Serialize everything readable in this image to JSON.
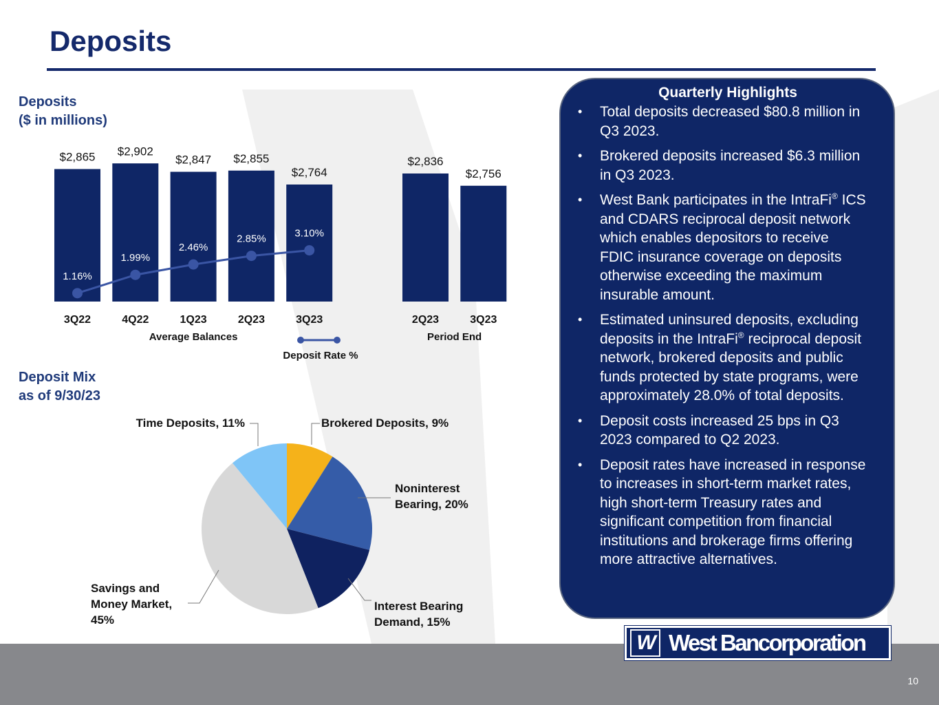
{
  "header": {
    "title": "Deposits"
  },
  "colors": {
    "navy": "#14296b",
    "bar": "#0f2666",
    "rate_line": "#3a55a4",
    "footer": "#87888c"
  },
  "deposits_chart": {
    "title": "Deposits\n($ in millions)"
  },
  "mix_chart": {
    "title": "Deposit Mix\nas of 9/30/23"
  },
  "chart_data": [
    {
      "type": "bar",
      "title": "Deposits ($ in millions)",
      "groups": [
        {
          "name": "Average Balances",
          "categories": [
            "3Q22",
            "4Q22",
            "1Q23",
            "2Q23",
            "3Q23"
          ],
          "values": [
            2865,
            2902,
            2847,
            2855,
            2764
          ],
          "labels": [
            "$2,865",
            "$2,902",
            "$2,847",
            "$2,855",
            "$2,764"
          ]
        },
        {
          "name": "Period End",
          "categories": [
            "2Q23",
            "3Q23"
          ],
          "values": [
            2836,
            2756
          ],
          "labels": [
            "$2,836",
            "$2,756"
          ]
        }
      ],
      "line_series": {
        "name": "Deposit Rate  %",
        "categories": [
          "3Q22",
          "4Q22",
          "1Q23",
          "2Q23",
          "3Q23"
        ],
        "values": [
          1.16,
          1.99,
          2.46,
          2.85,
          3.1
        ],
        "labels": [
          "1.16%",
          "1.99%",
          "2.46%",
          "2.85%",
          "3.10%"
        ]
      }
    },
    {
      "type": "pie",
      "title": "Deposit Mix as of 9/30/23",
      "slices": [
        {
          "name": "Brokered Deposits",
          "value": 9,
          "label": "Brokered Deposits, 9%",
          "color": "#f5b21a"
        },
        {
          "name": "Noninterest Bearing",
          "value": 20,
          "label": "Noninterest\nBearing, 20%",
          "color": "#355ca8"
        },
        {
          "name": "Interest Bearing Demand",
          "value": 15,
          "label": "Interest Bearing\nDemand, 15%",
          "color": "#0f2260"
        },
        {
          "name": "Savings and Money Market",
          "value": 45,
          "label": "Savings and\nMoney Market,\n45%",
          "color": "#d8d8d8"
        },
        {
          "name": "Time Deposits",
          "value": 11,
          "label": "Time Deposits, 11%",
          "color": "#7fc5f7"
        }
      ]
    }
  ],
  "highlights": {
    "title": "Quarterly Highlights",
    "items": [
      "Total deposits decreased $80.8 million in Q3 2023.",
      "Brokered deposits increased $6.3 million in Q3 2023.",
      "West Bank participates in the IntraFi® ICS and CDARS reciprocal deposit network which enables depositors to receive FDIC insurance coverage on deposits otherwise exceeding the maximum insurable amount.",
      "Estimated uninsured deposits, excluding deposits in the IntraFi® reciprocal deposit network, brokered deposits and public funds protected by state programs, were approximately 28.0% of total deposits.",
      "Deposit costs increased 25 bps in Q3 2023 compared to Q2 2023.",
      "Deposit rates have increased in response to increases in short-term market rates, high short-term Treasury rates and significant competition from financial institutions and brokerage firms offering more attractive alternatives."
    ]
  },
  "footer": {
    "logo_mark": "W",
    "logo_text": "West Bancorporation",
    "page_number": "10"
  }
}
